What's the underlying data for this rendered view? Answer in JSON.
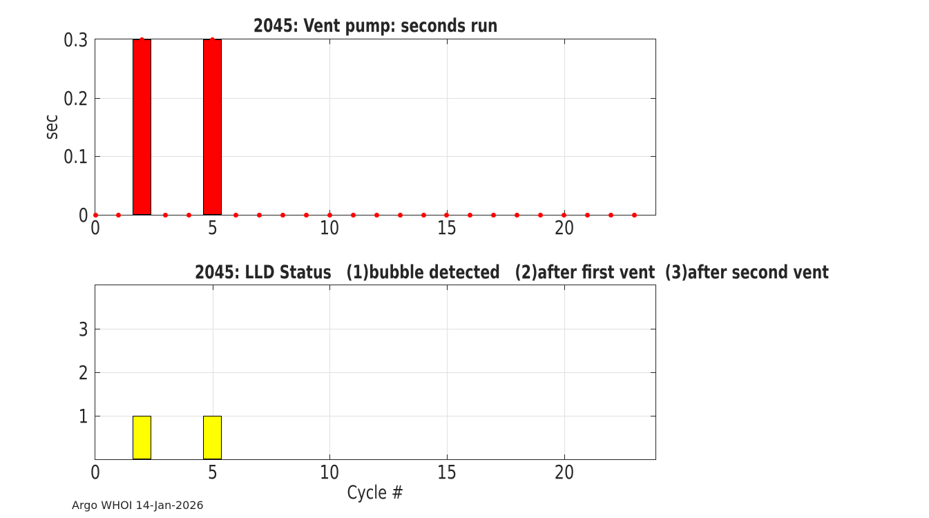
{
  "figure": {
    "background": "#ffffff",
    "footer": "Argo WHOI 14-Jan-2026"
  },
  "chart_data": [
    {
      "type": "bar",
      "title": "2045: Vent pump: seconds run",
      "xlabel": "",
      "ylabel": "sec",
      "x": [
        0,
        1,
        2,
        3,
        4,
        5,
        6,
        7,
        8,
        9,
        10,
        11,
        12,
        13,
        14,
        15,
        16,
        17,
        18,
        19,
        20,
        21,
        22,
        23
      ],
      "values": [
        0,
        0,
        0.3,
        0,
        0,
        0.3,
        0,
        0,
        0,
        0,
        0,
        0,
        0,
        0,
        0,
        0,
        0,
        0,
        0,
        0,
        0,
        0,
        0,
        0
      ],
      "bar_color": "#ff0000",
      "bar_width": 0.8,
      "markers": true,
      "marker_color": "#ff0000",
      "xlim": [
        0,
        23.9
      ],
      "ylim": [
        0,
        0.3
      ],
      "xticks": [
        0,
        5,
        10,
        15,
        20
      ],
      "xtick_labels": [
        "0",
        "5",
        "10",
        "15",
        "20"
      ],
      "yticks": [
        0,
        0.1,
        0.2,
        0.3
      ],
      "ytick_labels": [
        "0",
        "0.1",
        "0.2",
        "0.3"
      ],
      "grid": true,
      "legend": null
    },
    {
      "type": "bar",
      "title": "2045: LLD Status   (1)bubble detected   (2)after first vent  (3)after second vent",
      "xlabel": "Cycle #",
      "ylabel": "",
      "x": [
        0,
        1,
        2,
        3,
        4,
        5,
        6,
        7,
        8,
        9,
        10,
        11,
        12,
        13,
        14,
        15,
        16,
        17,
        18,
        19,
        20,
        21,
        22,
        23
      ],
      "values": [
        0,
        0,
        1,
        0,
        0,
        1,
        0,
        0,
        0,
        0,
        0,
        0,
        0,
        0,
        0,
        0,
        0,
        0,
        0,
        0,
        0,
        0,
        0,
        0
      ],
      "bar_color": "#ffff00",
      "bar_width": 0.8,
      "markers": false,
      "marker_color": null,
      "xlim": [
        0,
        23.9
      ],
      "ylim": [
        0,
        4
      ],
      "xticks": [
        0,
        5,
        10,
        15,
        20
      ],
      "xtick_labels": [
        "0",
        "5",
        "10",
        "15",
        "20"
      ],
      "yticks": [
        1,
        2,
        3
      ],
      "ytick_labels": [
        "1",
        "2",
        "3"
      ],
      "grid": true,
      "legend": null
    }
  ]
}
